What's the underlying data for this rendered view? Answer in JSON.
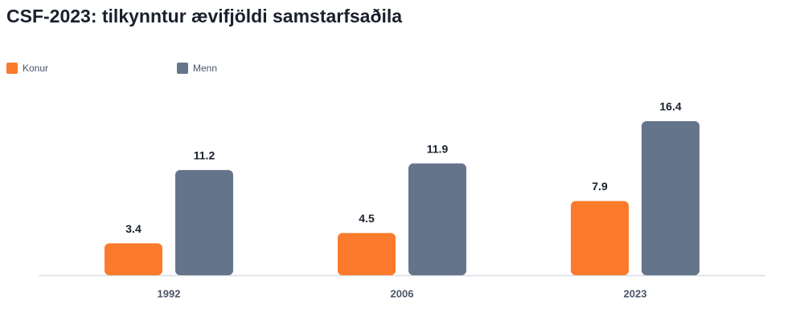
{
  "chart_data": {
    "type": "bar",
    "title": "CSF-2023: tilkynntur ævifjöldi samstarfsaðila",
    "categories": [
      "1992",
      "2006",
      "2023"
    ],
    "series": [
      {
        "name": "Konur",
        "color": "#fb7a2b",
        "values": [
          3.4,
          4.5,
          7.9
        ]
      },
      {
        "name": "Menn",
        "color": "#64748b",
        "values": [
          11.2,
          11.9,
          16.4
        ]
      }
    ],
    "legend": "top-left"
  }
}
